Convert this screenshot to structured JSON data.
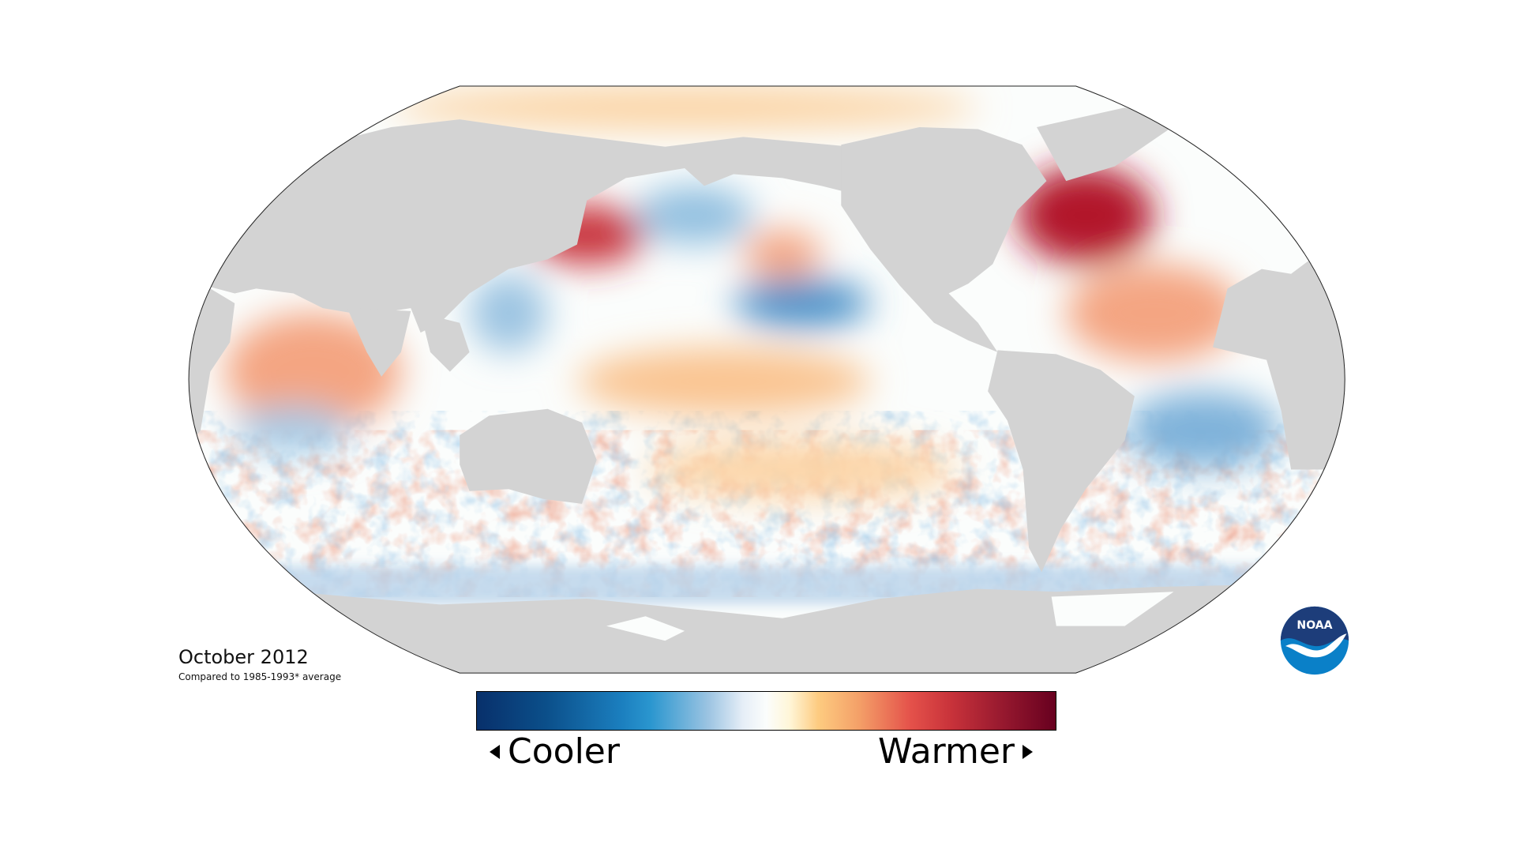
{
  "map": {
    "title": "October 2012",
    "subtitle": "Compared to 1985-1993* average",
    "land_color": "#d3d3d3",
    "ocean_neutral_color": "#fbfdfc"
  },
  "legend": {
    "cool_label": "Cooler",
    "warm_label": "Warmer",
    "gradient_colors": [
      "#08306b",
      "#1b7fbf",
      "#9cc4e2",
      "#fbfdfc",
      "#fdcb80",
      "#e4514a",
      "#67001f"
    ]
  },
  "logo": {
    "text": "NOAA",
    "colors": {
      "top": "#1d3d7a",
      "bottom": "#0a80c8"
    }
  }
}
